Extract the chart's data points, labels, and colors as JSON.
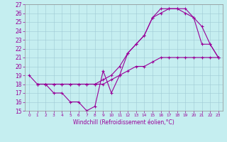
{
  "xlabel": "Windchill (Refroidissement éolien,°C)",
  "xlim": [
    0,
    23
  ],
  "ylim": [
    15,
    27
  ],
  "xticks": [
    0,
    1,
    2,
    3,
    4,
    5,
    6,
    7,
    8,
    9,
    10,
    11,
    12,
    13,
    14,
    15,
    16,
    17,
    18,
    19,
    20,
    21,
    22,
    23
  ],
  "yticks": [
    15,
    16,
    17,
    18,
    19,
    20,
    21,
    22,
    23,
    24,
    25,
    26,
    27
  ],
  "background_color": "#c5eef0",
  "grid_color": "#9ecad4",
  "line_color": "#990099",
  "line1_x": [
    1,
    2,
    3,
    4,
    5,
    6,
    7,
    8,
    9,
    10,
    11,
    12,
    13,
    14,
    15,
    16,
    17,
    18,
    19,
    20,
    21,
    22,
    23
  ],
  "line1_y": [
    18,
    18,
    17,
    17,
    16,
    16,
    15,
    15.5,
    19.5,
    17,
    19,
    21.5,
    22.5,
    23.5,
    25.5,
    26,
    26.5,
    26.5,
    26,
    25.5,
    22.5,
    22.5,
    21
  ],
  "line2_x": [
    0,
    1,
    2,
    3,
    4,
    5,
    6,
    7,
    8,
    9,
    10,
    11,
    12,
    13,
    14,
    15,
    16,
    17,
    18,
    19,
    20,
    21,
    22,
    23
  ],
  "line2_y": [
    19,
    18,
    18,
    18,
    18,
    18,
    18,
    18,
    18,
    18,
    18.5,
    19,
    19.5,
    20,
    20,
    20.5,
    21,
    21,
    21,
    21,
    21,
    21,
    21,
    21
  ],
  "line3_x": [
    1,
    2,
    3,
    4,
    5,
    6,
    7,
    8,
    9,
    10,
    11,
    12,
    13,
    14,
    15,
    16,
    17,
    18,
    19,
    20,
    21,
    22,
    23
  ],
  "line3_y": [
    18,
    18,
    18,
    18,
    18,
    18,
    18,
    18,
    18.5,
    19,
    20,
    21.5,
    22.5,
    23.5,
    25.5,
    26.5,
    26.5,
    26.5,
    26.5,
    25.5,
    24.5,
    22.5,
    21
  ]
}
